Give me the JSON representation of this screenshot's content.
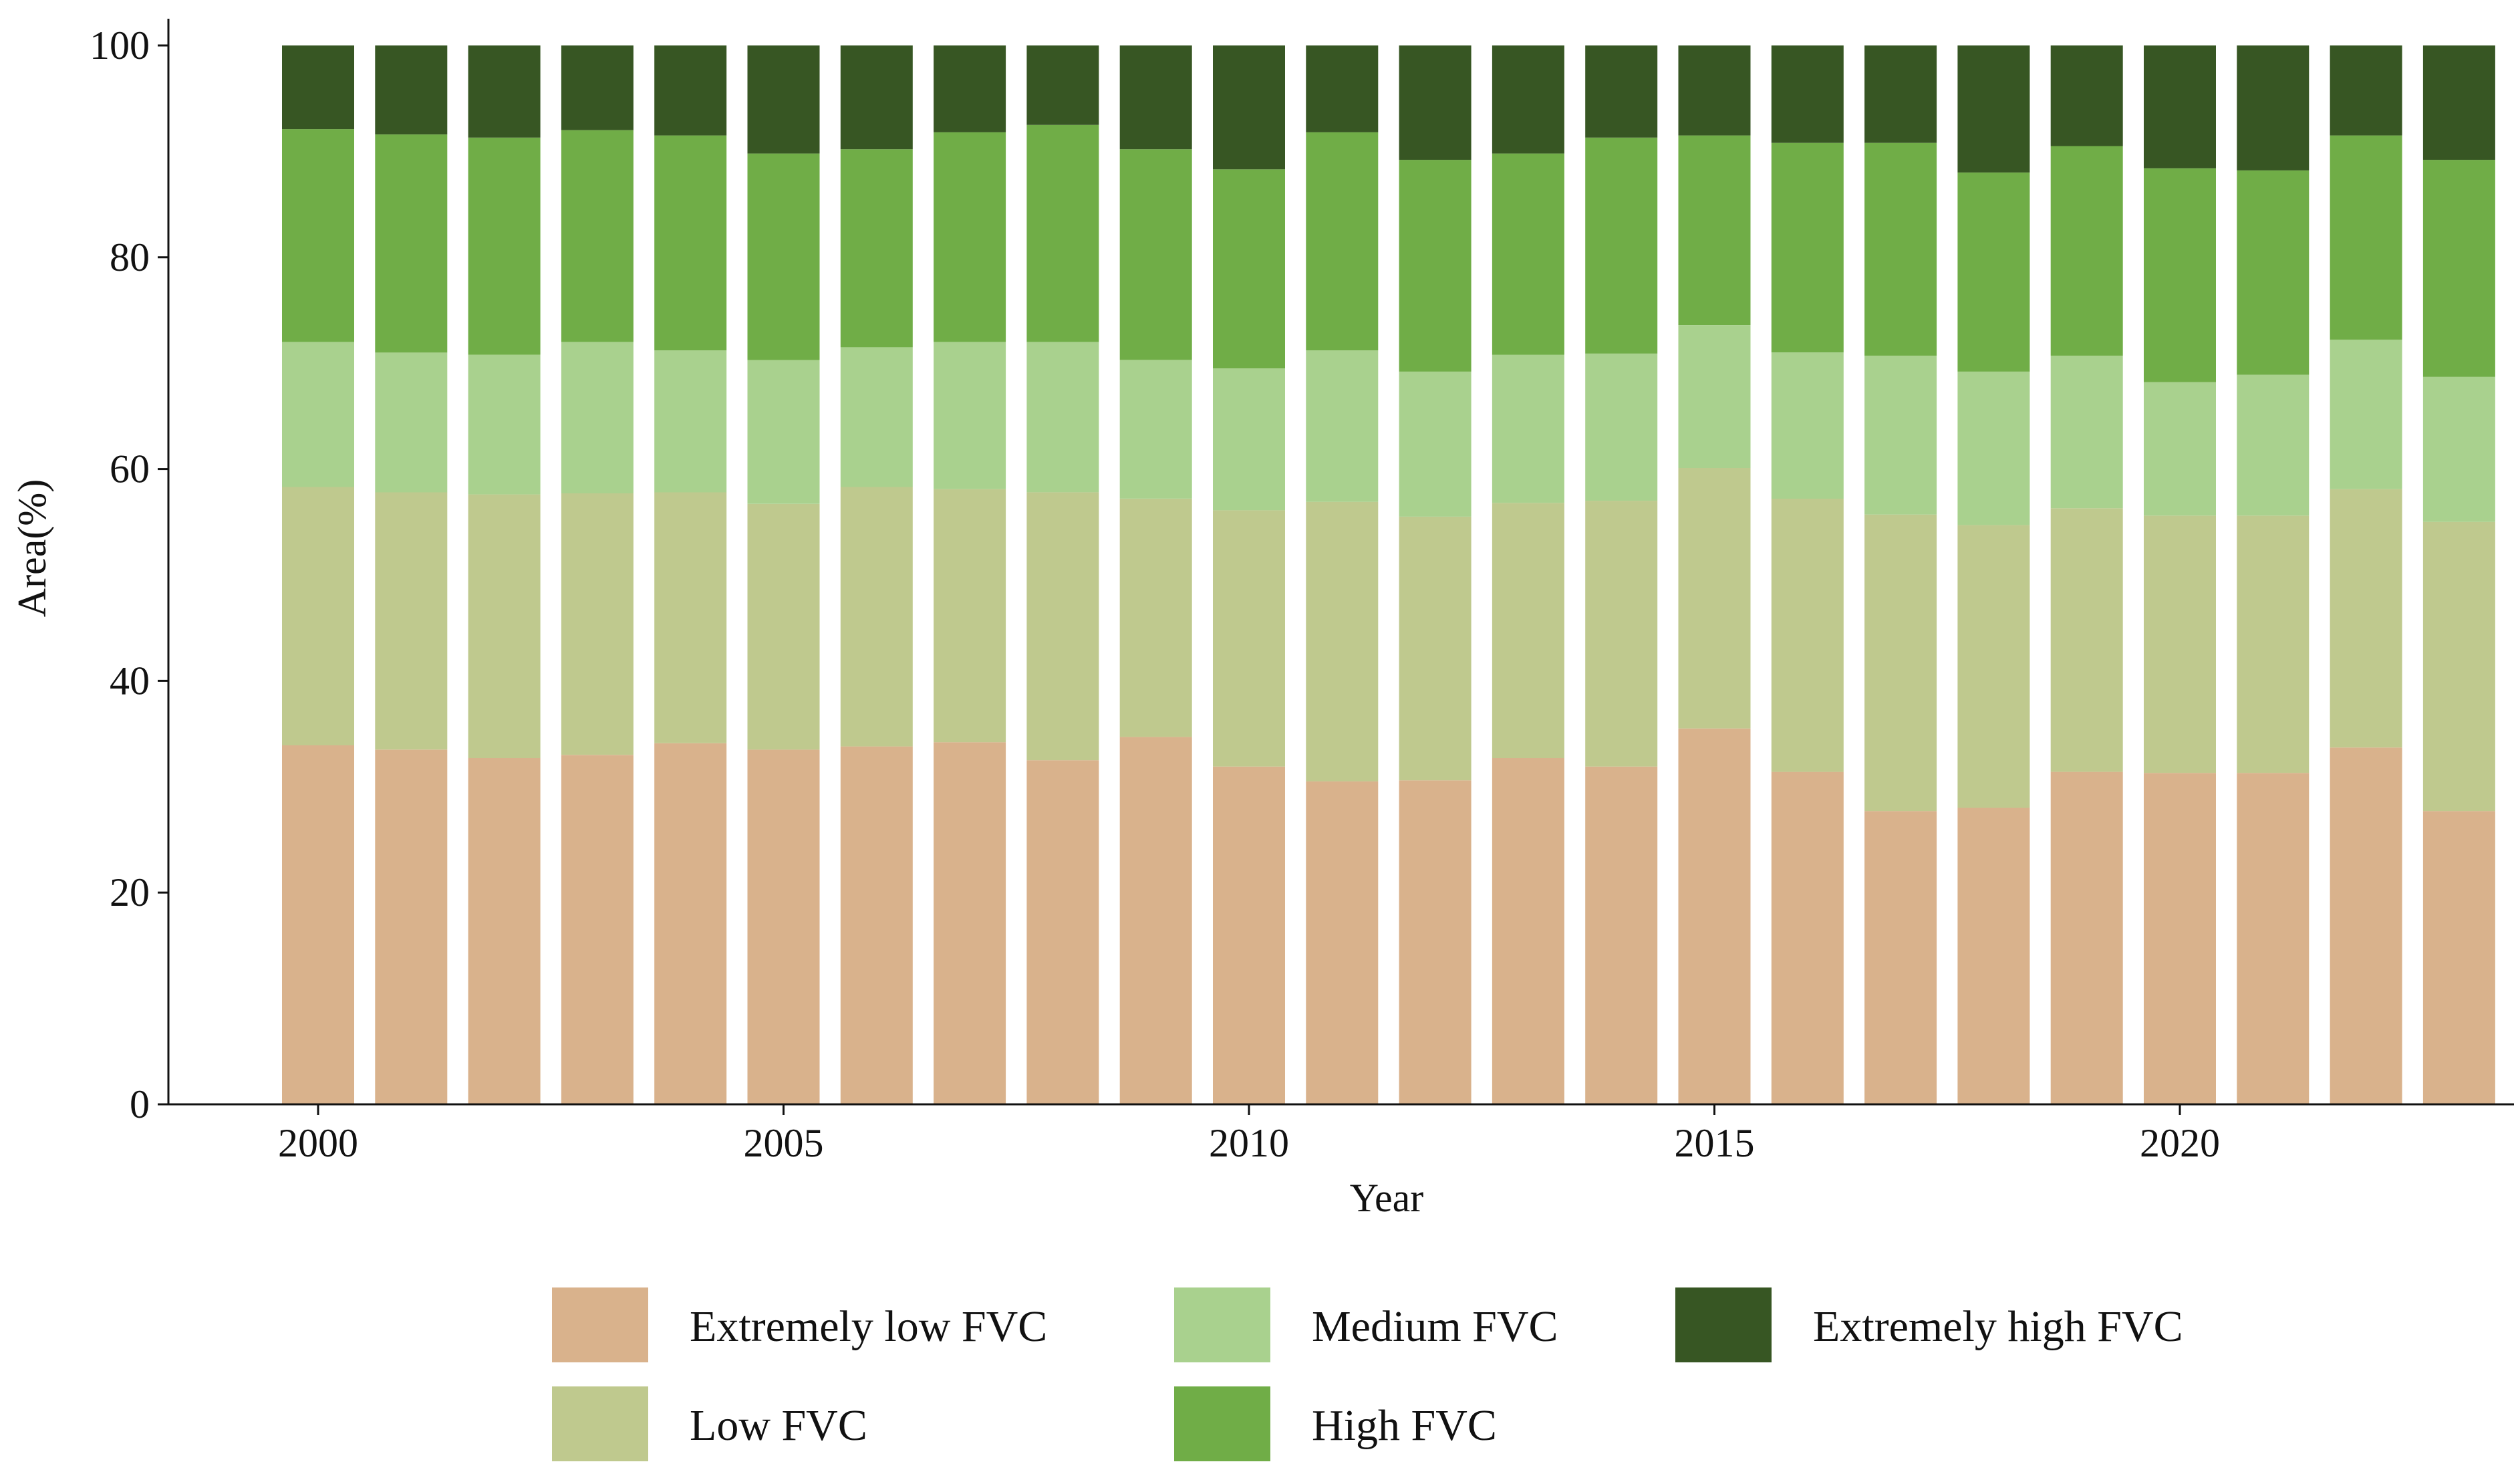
{
  "chart_data": {
    "type": "bar",
    "stacked": true,
    "xlabel": "Year",
    "ylabel": "Area(%)",
    "ylim": [
      0,
      100
    ],
    "yticks": [
      0,
      20,
      40,
      60,
      80,
      100
    ],
    "xticks": [
      2000,
      2005,
      2010,
      2015,
      2020
    ],
    "grid": false,
    "legend_position": "bottom",
    "categories": [
      2000,
      2001,
      2002,
      2003,
      2004,
      2005,
      2006,
      2007,
      2008,
      2009,
      2010,
      2011,
      2012,
      2013,
      2014,
      2015,
      2016,
      2017,
      2018,
      2019,
      2020,
      2021,
      2022,
      2023
    ],
    "series": [
      {
        "name": "Extremely low FVC",
        "color": "#d9b28c",
        "values": [
          33.9,
          33.5,
          32.7,
          33.0,
          34.1,
          33.5,
          33.8,
          34.2,
          32.5,
          34.7,
          31.9,
          30.5,
          30.6,
          32.7,
          31.9,
          35.5,
          31.4,
          27.7,
          28.0,
          31.4,
          31.3,
          31.3,
          33.7,
          27.7
        ]
      },
      {
        "name": "Low FVC",
        "color": "#bfc98e",
        "values": [
          24.4,
          24.3,
          24.9,
          24.7,
          23.7,
          23.2,
          24.5,
          23.9,
          25.3,
          22.5,
          24.2,
          26.4,
          24.9,
          24.1,
          25.1,
          24.6,
          25.8,
          28.0,
          26.7,
          24.9,
          24.3,
          24.3,
          24.4,
          27.3
        ]
      },
      {
        "name": "Medium FVC",
        "color": "#a9d18e",
        "values": [
          13.7,
          13.2,
          13.2,
          14.3,
          13.4,
          13.6,
          13.2,
          13.9,
          14.2,
          13.1,
          13.4,
          14.3,
          13.7,
          14.0,
          13.9,
          13.5,
          13.8,
          15.0,
          14.5,
          14.4,
          12.6,
          13.3,
          14.1,
          13.7
        ]
      },
      {
        "name": "High FVC",
        "color": "#70ad47",
        "values": [
          20.1,
          20.6,
          20.5,
          20.0,
          20.3,
          19.5,
          18.7,
          19.8,
          20.5,
          19.9,
          18.8,
          20.6,
          20.0,
          19.0,
          20.4,
          17.9,
          19.8,
          20.1,
          18.8,
          19.8,
          20.2,
          19.3,
          19.3,
          20.5
        ]
      },
      {
        "name": "Extremely high FVC",
        "color": "#375623",
        "values": [
          7.9,
          8.4,
          8.7,
          8.0,
          8.5,
          10.2,
          9.8,
          8.2,
          7.5,
          9.8,
          11.7,
          8.2,
          10.8,
          10.2,
          8.7,
          8.5,
          9.2,
          9.2,
          12.0,
          9.5,
          11.6,
          11.8,
          8.5,
          10.8
        ]
      }
    ]
  }
}
